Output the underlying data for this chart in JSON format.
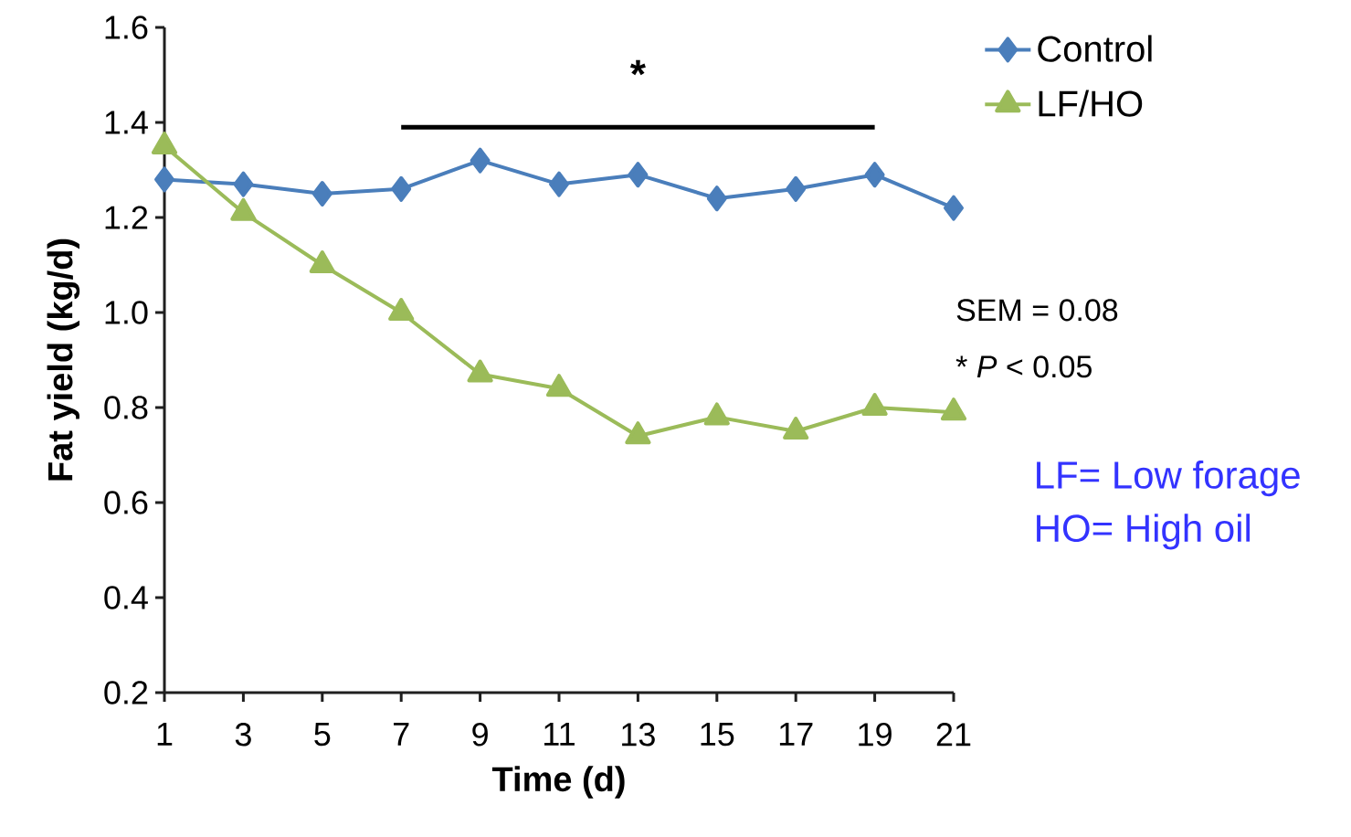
{
  "chart_data": {
    "type": "line",
    "xlabel": "Time (d)",
    "ylabel": "Fat yield (kg/d)",
    "x": [
      1,
      3,
      5,
      7,
      9,
      11,
      13,
      15,
      17,
      19,
      21
    ],
    "series": [
      {
        "name": "Control",
        "color": "#4a7ebb",
        "marker": "diamond",
        "values": [
          1.28,
          1.27,
          1.25,
          1.26,
          1.32,
          1.27,
          1.29,
          1.24,
          1.26,
          1.29,
          1.22
        ]
      },
      {
        "name": "LF/HO",
        "color": "#9bbb59",
        "marker": "triangle",
        "values": [
          1.35,
          1.21,
          1.1,
          1.0,
          0.87,
          0.84,
          0.74,
          0.78,
          0.75,
          0.8,
          0.79
        ]
      },
      {
        "type": "line",
        "color": "#000000",
        "marker": "none",
        "x": [
          7,
          19
        ],
        "values": [
          1.39,
          1.39
        ]
      }
    ],
    "xlim": [
      1,
      21
    ],
    "xticks": [
      1,
      3,
      5,
      7,
      9,
      11,
      13,
      15,
      17,
      19,
      21
    ],
    "ylim": [
      0.2,
      1.6
    ],
    "yticks": [
      {
        "value": 0.2,
        "label": "0.2"
      },
      {
        "value": 0.4,
        "label": "0.4"
      },
      {
        "value": 0.6,
        "label": "0.6"
      },
      {
        "value": 0.8,
        "label": "0.8"
      },
      {
        "value": 1.0,
        "label": "1.0"
      },
      {
        "value": 1.2,
        "label": "1.2"
      },
      {
        "value": 1.4,
        "label": "1.4"
      },
      {
        "value": 1.6,
        "label": "1.6"
      }
    ],
    "grid": false,
    "legend": "top right",
    "annotations": [
      {
        "text": "*",
        "x": 13,
        "y": 1.39
      },
      "SEM = 0.08",
      "* *P* < 0.05",
      "LF= Low forage",
      "HO= High oil"
    ]
  }
}
